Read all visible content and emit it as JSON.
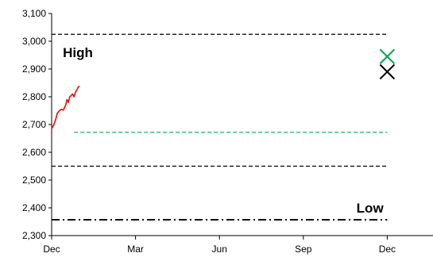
{
  "chart_data": {
    "type": "line",
    "title": "",
    "xlabel": "",
    "ylabel": "",
    "ylim": [
      2300,
      3100
    ],
    "yticks": [
      2300,
      2400,
      2500,
      2600,
      2700,
      2800,
      2900,
      3000,
      3100
    ],
    "ytick_labels": [
      "2,300",
      "2,400",
      "2,500",
      "2,600",
      "2,700",
      "2,800",
      "2,900",
      "3,000",
      "3,100"
    ],
    "xticks": [
      {
        "month": 0,
        "label": "Dec"
      },
      {
        "month": 3,
        "label": "Mar"
      },
      {
        "month": 6,
        "label": "Jun"
      },
      {
        "month": 9,
        "label": "Sep"
      },
      {
        "month": 12,
        "label": "Dec"
      }
    ],
    "xlim": [
      0,
      14
    ],
    "grid": false,
    "legend": "none",
    "series": [
      {
        "style": "line",
        "color": "#ff0000",
        "x": [
          0.0,
          0.08,
          0.15,
          0.2,
          0.28,
          0.35,
          0.42,
          0.5,
          0.55,
          0.6,
          0.65,
          0.7,
          0.75,
          0.8,
          0.85,
          0.9,
          0.95,
          1.0
        ],
        "y": [
          2685,
          2700,
          2720,
          2740,
          2750,
          2755,
          2752,
          2770,
          2790,
          2780,
          2800,
          2805,
          2810,
          2800,
          2815,
          2825,
          2835,
          2838
        ]
      }
    ],
    "reference_lines": [
      {
        "y": 3025,
        "color": "#000000",
        "style": "dashed",
        "x_range": [
          0,
          12
        ]
      },
      {
        "y": 2672,
        "color": "#00a651",
        "style": "dashed",
        "x_range": [
          0.8,
          12
        ]
      },
      {
        "y": 2550,
        "color": "#000000",
        "style": "dashed",
        "x_range": [
          0,
          12
        ]
      },
      {
        "y": 2357,
        "color": "#000000",
        "style": "dashdot",
        "x_range": [
          0,
          12
        ]
      }
    ],
    "markers": [
      {
        "x": 12,
        "y": 2945,
        "symbol": "x",
        "color": "#00a651"
      },
      {
        "x": 12,
        "y": 2890,
        "symbol": "x",
        "color": "#000000"
      }
    ],
    "annotations": [
      {
        "text": "High",
        "x": 0.4,
        "y": 2960
      },
      {
        "text": "Low",
        "x": 10.9,
        "y": 2400
      }
    ]
  }
}
